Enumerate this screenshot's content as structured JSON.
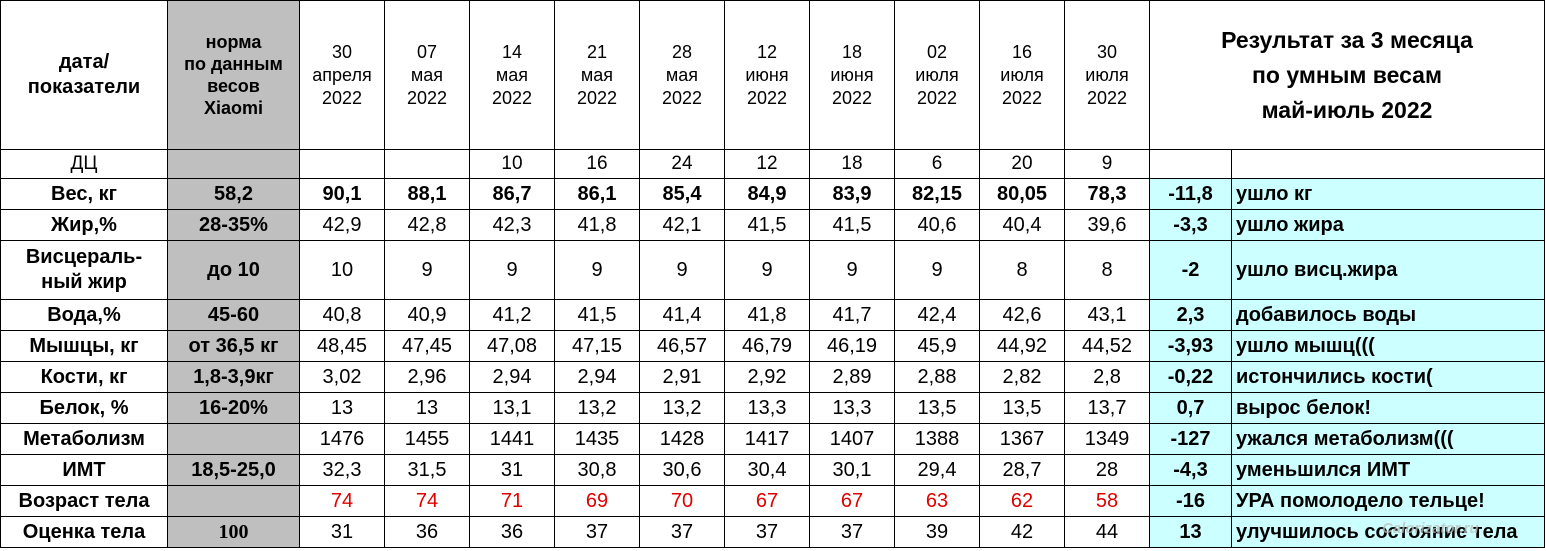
{
  "header": {
    "label": [
      "дата/",
      "показатели"
    ],
    "norm": [
      "норма",
      "по данным",
      "весов",
      "Xiaomi"
    ],
    "dates": [
      [
        "30",
        "апреля",
        "2022"
      ],
      [
        "07",
        "мая",
        "2022"
      ],
      [
        "14",
        "мая",
        "2022"
      ],
      [
        "21",
        "мая",
        "2022"
      ],
      [
        "28",
        "мая",
        "2022"
      ],
      [
        "12",
        "июня",
        "2022"
      ],
      [
        "18",
        "июня",
        "2022"
      ],
      [
        "02",
        "июля",
        "2022"
      ],
      [
        "16",
        "июля",
        "2022"
      ],
      [
        "30",
        "июля",
        "2022"
      ]
    ],
    "result_title": [
      "Результат за 3 месяца",
      "по умным весам",
      "май-июль 2022"
    ]
  },
  "dc_row": {
    "label": "ДЦ",
    "values": [
      "",
      "",
      "10",
      "16",
      "24",
      "12",
      "18",
      "6",
      "20",
      "9"
    ]
  },
  "rows": [
    {
      "label": [
        "Вес, кг"
      ],
      "norm": "58,2",
      "values": [
        "90,1",
        "88,1",
        "86,7",
        "86,1",
        "85,4",
        "84,9",
        "83,9",
        "82,15",
        "80,05",
        "78,3"
      ],
      "result": "-11,8",
      "note": "ушло кг"
    },
    {
      "label": [
        "Жир,%"
      ],
      "norm": "28-35%",
      "values": [
        "42,9",
        "42,8",
        "42,3",
        "41,8",
        "42,1",
        "41,5",
        "41,5",
        "40,6",
        "40,4",
        "39,6"
      ],
      "result": "-3,3",
      "note": "ушло жира"
    },
    {
      "label": [
        "Висцераль-",
        "ный жир"
      ],
      "norm": "до 10",
      "values": [
        "10",
        "9",
        "9",
        "9",
        "9",
        "9",
        "9",
        "9",
        "8",
        "8"
      ],
      "result": "-2",
      "note": "ушло висц.жира"
    },
    {
      "label": [
        "Вода,%"
      ],
      "norm": "45-60",
      "values": [
        "40,8",
        "40,9",
        "41,2",
        "41,5",
        "41,4",
        "41,8",
        "41,7",
        "42,4",
        "42,6",
        "43,1"
      ],
      "result": "2,3",
      "note": "добавилось воды"
    },
    {
      "label": [
        "Мышцы, кг"
      ],
      "norm": "от 36,5 кг",
      "values": [
        "48,45",
        "47,45",
        "47,08",
        "47,15",
        "46,57",
        "46,79",
        "46,19",
        "45,9",
        "44,92",
        "44,52"
      ],
      "result": "-3,93",
      "note": "ушло мышц((("
    },
    {
      "label": [
        "Кости, кг"
      ],
      "norm": "1,8-3,9кг",
      "values": [
        "3,02",
        "2,96",
        "2,94",
        "2,94",
        "2,91",
        "2,92",
        "2,89",
        "2,88",
        "2,82",
        "2,8"
      ],
      "result": "-0,22",
      "note": "истончились кости("
    },
    {
      "label": [
        "Белок, %"
      ],
      "norm": "16-20%",
      "values": [
        "13",
        "13",
        "13,1",
        "13,2",
        "13,2",
        "13,3",
        "13,3",
        "13,5",
        "13,5",
        "13,7"
      ],
      "result": "0,7",
      "note": "вырос белок!"
    },
    {
      "label": [
        "Метаболизм"
      ],
      "norm": "",
      "values": [
        "1476",
        "1455",
        "1441",
        "1435",
        "1428",
        "1417",
        "1407",
        "1388",
        "1367",
        "1349"
      ],
      "result": "-127",
      "note": "ужался метаболизм((("
    },
    {
      "label": [
        "ИМТ"
      ],
      "norm": "18,5-25,0",
      "values": [
        "32,3",
        "31,5",
        "31",
        "30,8",
        "30,6",
        "30,4",
        "30,1",
        "29,4",
        "28,7",
        "28"
      ],
      "result": "-4,3",
      "note": "уменьшился ИМТ"
    },
    {
      "label": [
        "Возраст тела"
      ],
      "norm": "",
      "values": [
        "74",
        "74",
        "71",
        "69",
        "70",
        "67",
        "67",
        "63",
        "62",
        "58"
      ],
      "result": "-16",
      "note": "УРА помолодело тельце!"
    },
    {
      "label": [
        "Оценка тела"
      ],
      "norm": "100",
      "values": [
        "31",
        "36",
        "36",
        "37",
        "37",
        "37",
        "37",
        "39",
        "42",
        "44"
      ],
      "result": "13",
      "note": "улучшилось состояние тела"
    }
  ],
  "watermark": "Calorizator.ru",
  "colors": {
    "norm_bg": "#bfbfbf",
    "result_bg": "#ccffff",
    "age_values": "#e00000"
  }
}
